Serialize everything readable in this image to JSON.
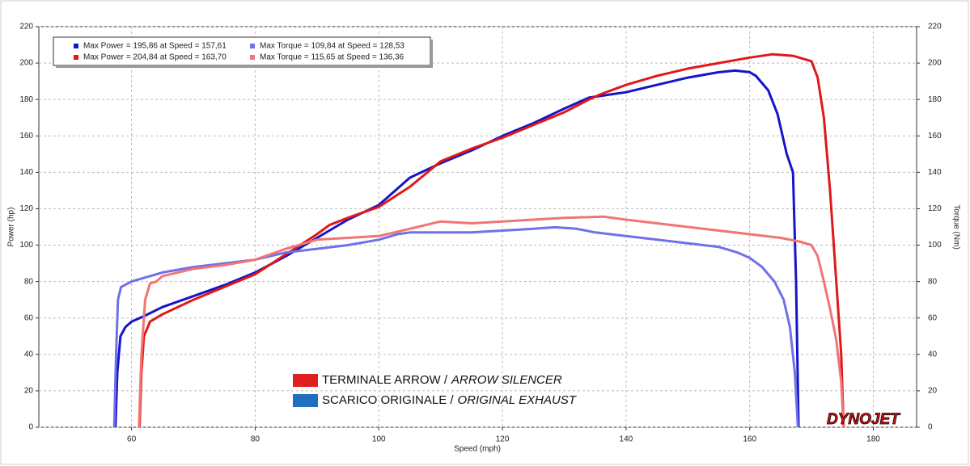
{
  "chart_data": {
    "type": "line",
    "xlabel": "Speed (mph)",
    "ylabel": "Power (hp)",
    "y2label": "Torque (Nm)",
    "xlim": [
      45,
      187
    ],
    "xticks": [
      60,
      80,
      100,
      120,
      140,
      160,
      180
    ],
    "ylim": [
      0,
      220
    ],
    "yticks": [
      0,
      20,
      40,
      60,
      80,
      100,
      120,
      140,
      160,
      180,
      200,
      220
    ],
    "y2lim": [
      0,
      220
    ],
    "y2ticks": [
      0,
      20,
      40,
      60,
      80,
      100,
      120,
      140,
      160,
      180,
      200,
      220
    ],
    "grid": true,
    "series": [
      {
        "name": "Max Power = 195,86 at Speed = 157,61",
        "color": "#1515c8",
        "x": [
          57.4,
          57.7,
          58.2,
          59,
          60,
          62,
          65,
          70,
          75,
          80,
          85,
          90,
          95,
          100,
          105,
          110,
          115,
          120,
          125,
          130,
          134,
          138,
          140,
          145,
          150,
          155,
          157.6,
          160,
          161,
          163,
          164.5,
          166,
          167,
          167.5,
          167.9
        ],
        "values": [
          0,
          30,
          50,
          55,
          58,
          61,
          66,
          72,
          78,
          85,
          94,
          104,
          114,
          122,
          137,
          145,
          152,
          160,
          167,
          175,
          181,
          183,
          184,
          188,
          192,
          195,
          195.86,
          195,
          193,
          185,
          172,
          150,
          140,
          80,
          0
        ]
      },
      {
        "name": "Max Power = 204,84 at Speed = 163,70",
        "color": "#e01818",
        "x": [
          61.3,
          61.6,
          62,
          63,
          64,
          65,
          70,
          75,
          80,
          85,
          90,
          92,
          95,
          100,
          105,
          110,
          115,
          120,
          125,
          130,
          134,
          136,
          140,
          145,
          150,
          155,
          160,
          163.7,
          167,
          170,
          171,
          172,
          173,
          174,
          174.8,
          175.2
        ],
        "values": [
          0,
          30,
          50,
          58,
          60,
          62,
          70,
          77,
          84,
          95,
          106,
          111,
          115,
          121,
          132,
          146,
          153,
          159,
          166,
          173,
          180,
          183,
          188,
          193,
          197,
          200,
          203,
          204.84,
          204,
          201,
          192,
          170,
          130,
          80,
          40,
          0
        ]
      },
      {
        "name": "Max Torque = 109,84 at Speed = 128,53",
        "color": "#7070e8",
        "axis": "y2",
        "x": [
          57.2,
          57.5,
          57.8,
          58.3,
          60,
          62,
          65,
          70,
          75,
          80,
          85,
          90,
          95,
          100,
          103,
          105,
          110,
          115,
          120,
          125,
          128.5,
          132,
          135,
          140,
          145,
          150,
          155,
          158,
          160,
          162,
          164,
          165.5,
          166.5,
          167.3,
          167.8
        ],
        "values": [
          0,
          40,
          70,
          77,
          80,
          82,
          85,
          88,
          90,
          92,
          96,
          98,
          100,
          103,
          106,
          107,
          107,
          107,
          108,
          109,
          109.84,
          109,
          107,
          105,
          103,
          101,
          99,
          96,
          93,
          88,
          80,
          70,
          55,
          30,
          0
        ]
      },
      {
        "name": "Max Torque = 115,65 at Speed = 136,36",
        "color": "#f07575",
        "axis": "y2",
        "x": [
          61.2,
          61.6,
          62.2,
          63,
          64,
          65,
          70,
          75,
          80,
          85,
          90,
          95,
          100,
          105,
          110,
          115,
          120,
          125,
          130,
          136.36,
          140,
          145,
          150,
          155,
          160,
          165,
          168,
          170,
          171,
          172,
          173,
          174,
          174.8,
          175.2
        ],
        "values": [
          0,
          40,
          70,
          79,
          80,
          83,
          87,
          89,
          92,
          98,
          103,
          104,
          105,
          109,
          113,
          112,
          113,
          114,
          115,
          115.65,
          114,
          112,
          110,
          108,
          106,
          104,
          102,
          100,
          94,
          80,
          65,
          48,
          25,
          0
        ]
      }
    ],
    "annotations": [
      {
        "text": "TERMINALE ARROW /",
        "italic": "ARROW SILENCER",
        "color": "#e02020"
      },
      {
        "text": "SCARICO ORIGINALE /",
        "italic": "ORIGINAL EXHAUST",
        "color": "#1f6fc0"
      }
    ],
    "logo": "DYNOJET"
  }
}
